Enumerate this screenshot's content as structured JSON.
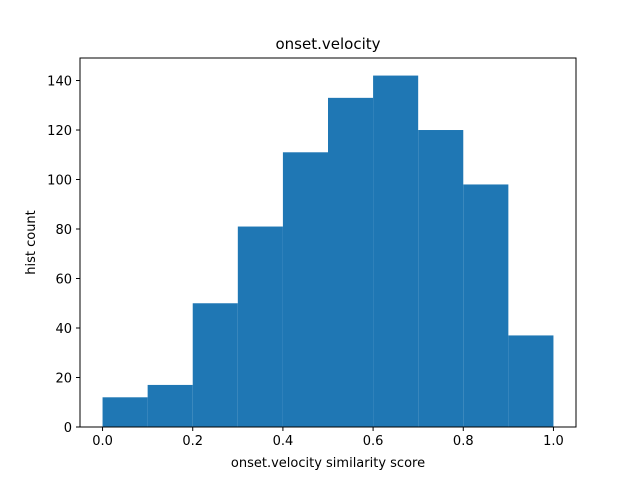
{
  "chart_data": {
    "type": "bar",
    "title": "onset.velocity",
    "xlabel": "onset.velocity similarity score",
    "ylabel": "hist count",
    "bins": [
      {
        "x0": 0.0,
        "x1": 0.1,
        "count": 12
      },
      {
        "x0": 0.1,
        "x1": 0.2,
        "count": 17
      },
      {
        "x0": 0.2,
        "x1": 0.3,
        "count": 50
      },
      {
        "x0": 0.3,
        "x1": 0.4,
        "count": 81
      },
      {
        "x0": 0.4,
        "x1": 0.5,
        "count": 111
      },
      {
        "x0": 0.5,
        "x1": 0.6,
        "count": 133
      },
      {
        "x0": 0.6,
        "x1": 0.7,
        "count": 142
      },
      {
        "x0": 0.7,
        "x1": 0.8,
        "count": 120
      },
      {
        "x0": 0.8,
        "x1": 0.9,
        "count": 98
      },
      {
        "x0": 0.9,
        "x1": 1.0,
        "count": 37
      }
    ],
    "xlim": [
      -0.05,
      1.05
    ],
    "ylim": [
      0,
      149.1
    ],
    "xticks": [
      0.0,
      0.2,
      0.4,
      0.6,
      0.8,
      1.0
    ],
    "xtick_labels": [
      "0.0",
      "0.2",
      "0.4",
      "0.6",
      "0.8",
      "1.0"
    ],
    "yticks": [
      0,
      20,
      40,
      60,
      80,
      100,
      120,
      140
    ],
    "ytick_labels": [
      "0",
      "20",
      "40",
      "60",
      "80",
      "100",
      "120",
      "140"
    ],
    "grid": false,
    "bar_color": "#1f77b4"
  }
}
